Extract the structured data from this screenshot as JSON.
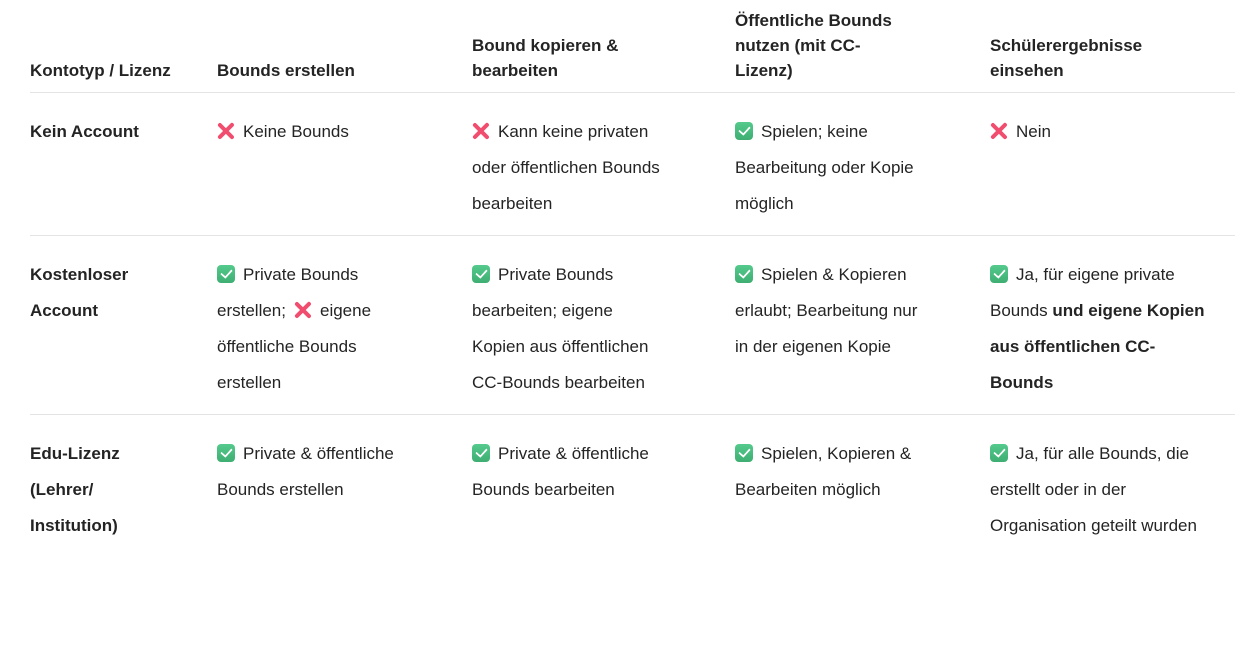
{
  "colors": {
    "text": "#242424",
    "divider": "#e4e4e4",
    "check_green_top": "#54ca8c",
    "check_green_bottom": "#3fae72",
    "cross_pink": "#f04d6f",
    "background": "#ffffff"
  },
  "table": {
    "columns": [
      "Kontotyp / Lizenz",
      "Bounds erstellen",
      "Bound kopieren & bearbeiten",
      "Öffentliche Bounds nutzen (mit CC-Lizenz)",
      "Schülerergebnisse einsehen"
    ],
    "rows": [
      {
        "label": "Kein Account",
        "cells": [
          [
            {
              "icon": "cross"
            },
            {
              "text": "Keine Bounds"
            }
          ],
          [
            {
              "icon": "cross"
            },
            {
              "text": "Kann keine privaten oder öffentlichen Bounds bearbeiten"
            }
          ],
          [
            {
              "icon": "check"
            },
            {
              "text": "Spielen; keine Bearbeitung oder Kopie möglich"
            }
          ],
          [
            {
              "icon": "cross"
            },
            {
              "text": "Nein"
            }
          ]
        ]
      },
      {
        "label": "Kostenloser Account",
        "cells": [
          [
            {
              "icon": "check"
            },
            {
              "text": "Private Bounds erstellen;"
            },
            {
              "icon": "cross"
            },
            {
              "text": "eigene öffentliche Bounds erstellen"
            }
          ],
          [
            {
              "icon": "check"
            },
            {
              "text": "Private Bounds bearbeiten; eigene Kopien aus öffentlichen CC-Bounds bearbeiten"
            }
          ],
          [
            {
              "icon": "check"
            },
            {
              "text": "Spielen & Kopieren erlaubt; Bearbeitung nur in der eigenen Kopie"
            }
          ],
          [
            {
              "icon": "check"
            },
            {
              "text": "Ja, für eigene private Bounds "
            },
            {
              "bold": "und eigene Kopien aus öffentlichen CC-Bounds"
            }
          ]
        ]
      },
      {
        "label": "Edu-Lizenz (Lehrer/ Institution)",
        "cells": [
          [
            {
              "icon": "check"
            },
            {
              "text": "Private & öffentliche Bounds erstellen"
            }
          ],
          [
            {
              "icon": "check"
            },
            {
              "text": "Private & öffentliche Bounds bearbeiten"
            }
          ],
          [
            {
              "icon": "check"
            },
            {
              "text": "Spielen, Kopieren & Bearbeiten möglich"
            }
          ],
          [
            {
              "icon": "check"
            },
            {
              "text": "Ja, für alle Bounds, die erstellt oder in der Organisation geteilt wurden"
            }
          ]
        ]
      }
    ]
  }
}
